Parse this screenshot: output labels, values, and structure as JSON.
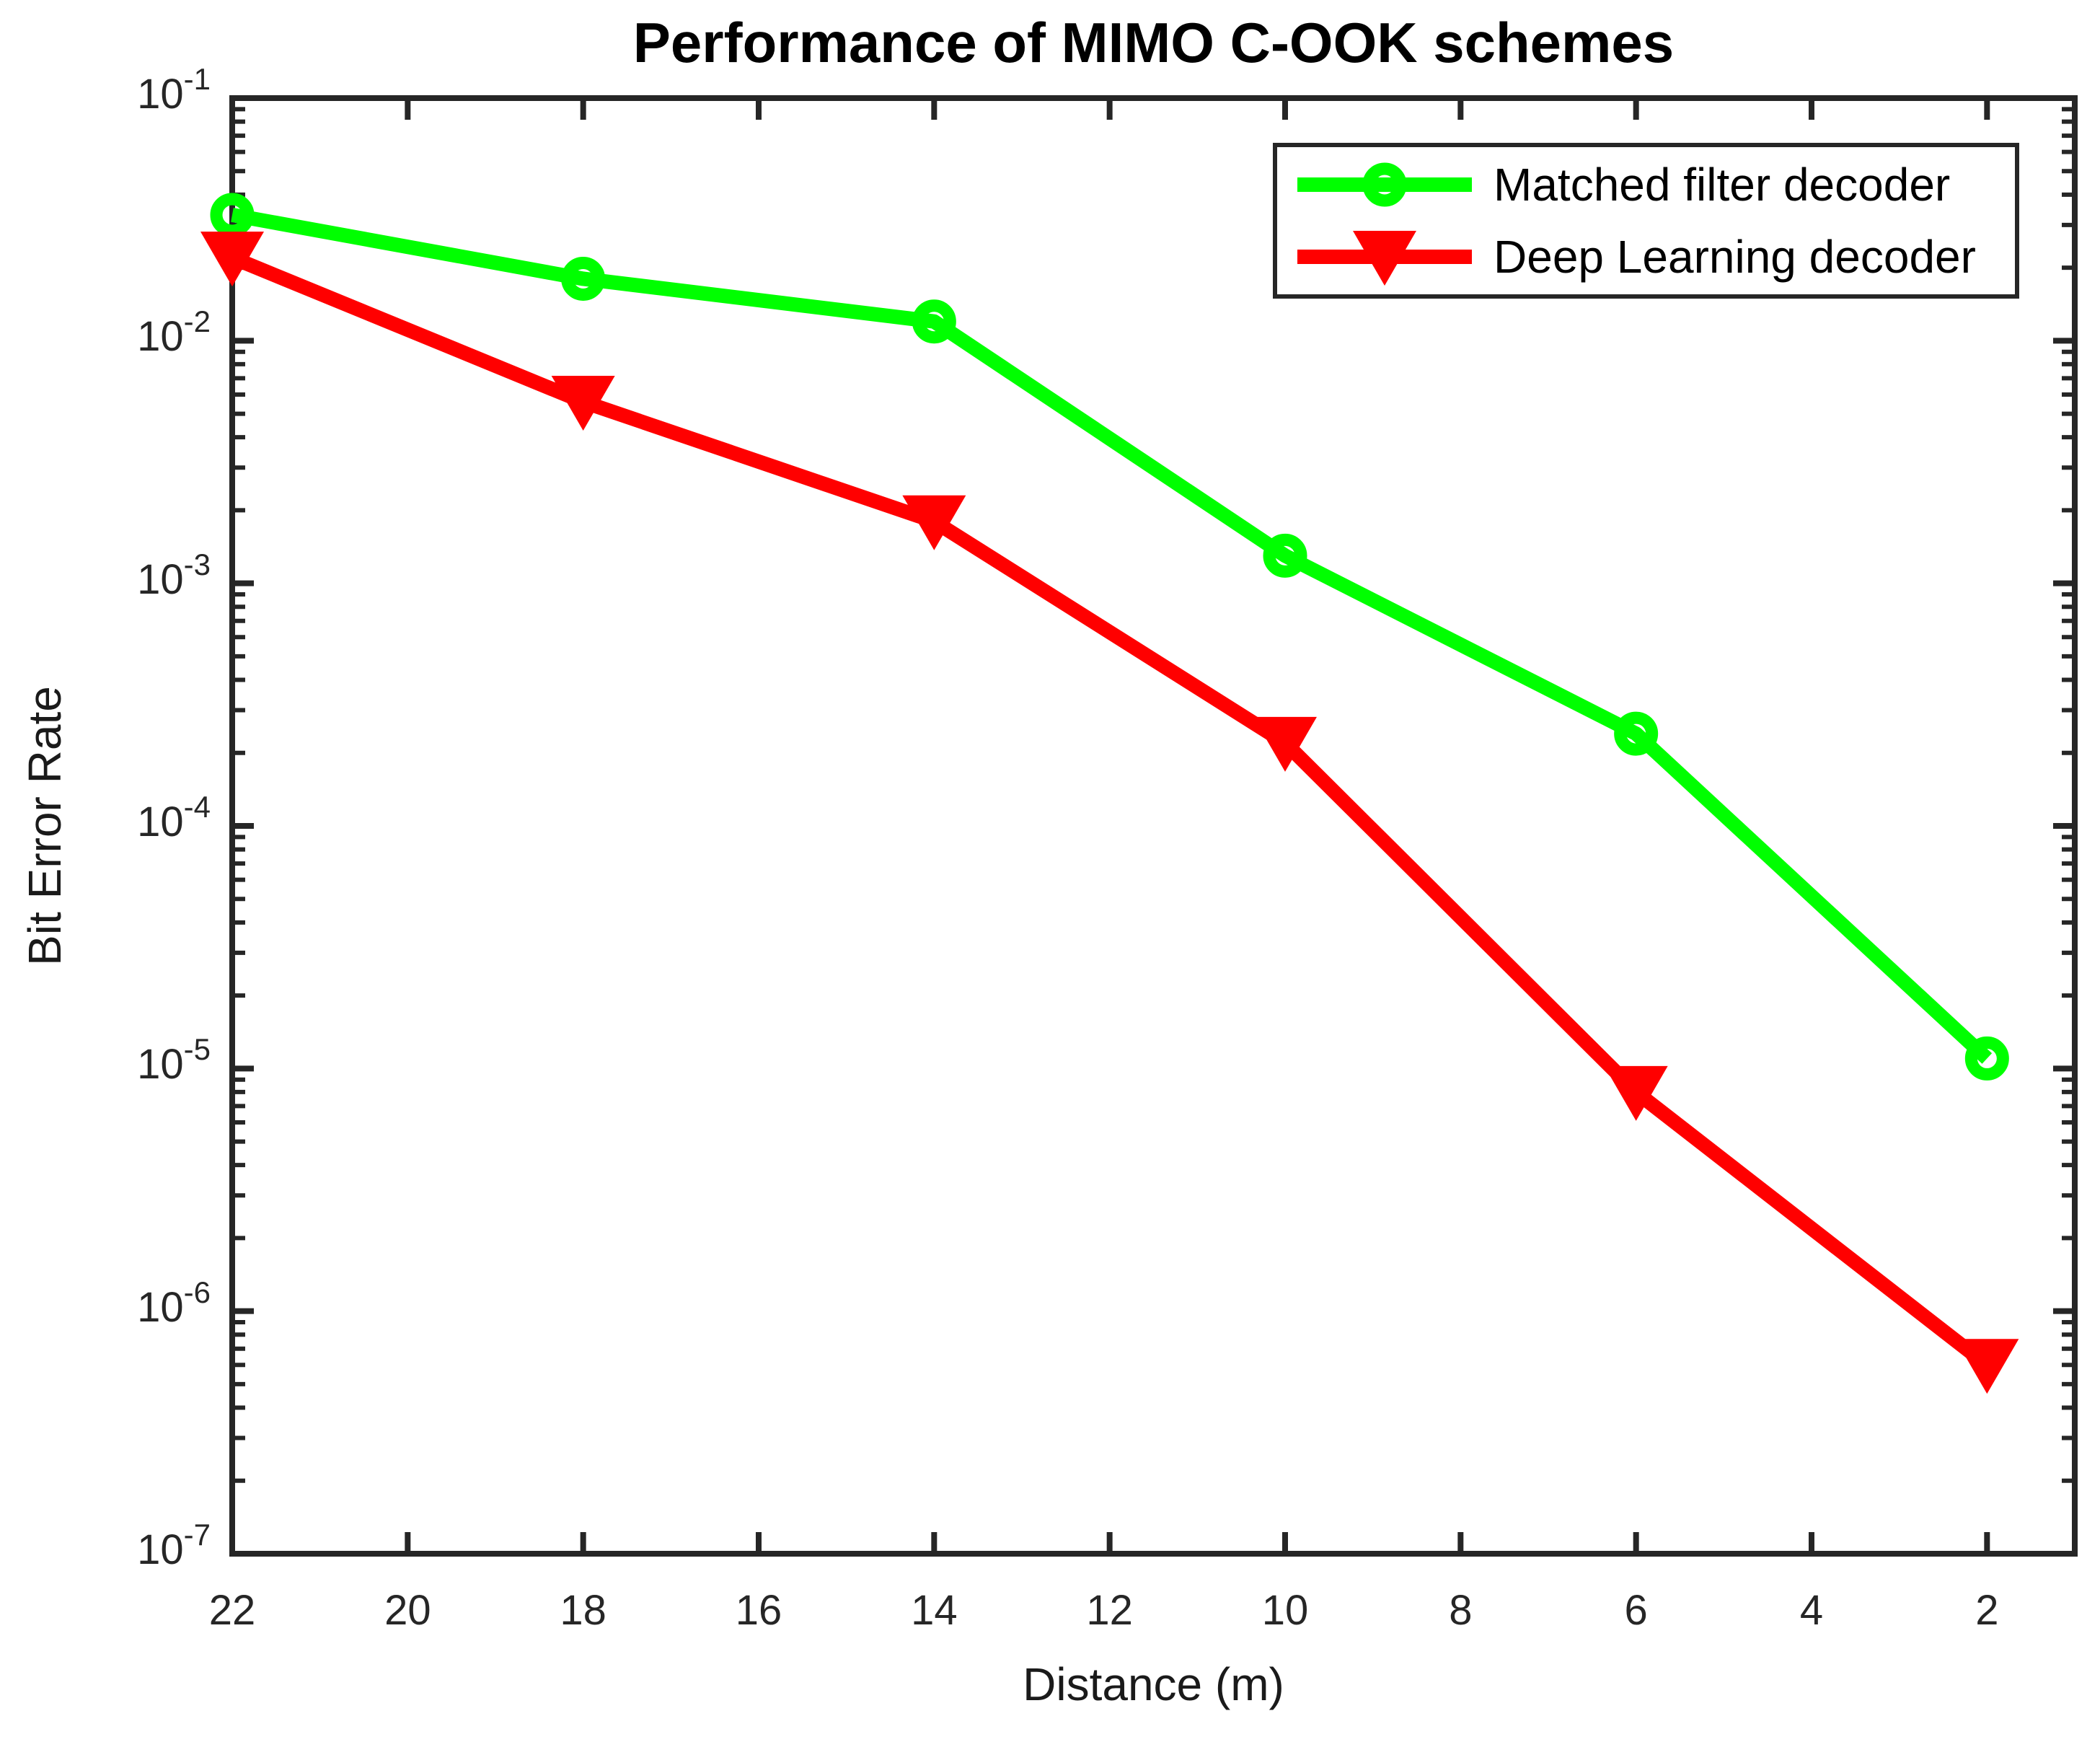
{
  "figure": {
    "background": "#ffffff"
  },
  "chart_data": {
    "type": "line",
    "title": "Performance of MIMO C-OOK schemes",
    "xlabel": "Distance (m)",
    "ylabel": "Bit Error Rate",
    "x": [
      22,
      18,
      14,
      10,
      6,
      2
    ],
    "series": [
      {
        "name": "Matched filter decoder",
        "color": "#00ff00",
        "marker": "circle",
        "values": [
          0.033,
          0.018,
          0.012,
          0.0013,
          0.00024,
          1.1e-05
        ]
      },
      {
        "name": "Deep Learning decoder",
        "color": "#ff0000",
        "marker": "triangle-down",
        "values": [
          0.022,
          0.0056,
          0.0018,
          0.00022,
          8e-06,
          6e-07
        ]
      }
    ],
    "x_axis": {
      "scale": "linear",
      "reversed": true,
      "range": [
        22,
        1
      ],
      "ticks": [
        22,
        20,
        18,
        16,
        14,
        12,
        10,
        8,
        6,
        4,
        2
      ],
      "tick_labels": [
        "22",
        "20",
        "18",
        "16",
        "14",
        "12",
        "10",
        "8",
        "6",
        "4",
        "2"
      ]
    },
    "y_axis": {
      "scale": "log",
      "range_exponents": [
        -1,
        -7
      ],
      "tick_exponents": [
        -1,
        -2,
        -3,
        -4,
        -5,
        -6,
        -7
      ],
      "tick_labels": [
        {
          "mantissa": "10",
          "exponent": "-1"
        },
        {
          "mantissa": "10",
          "exponent": "-2"
        },
        {
          "mantissa": "10",
          "exponent": "-3"
        },
        {
          "mantissa": "10",
          "exponent": "-4"
        },
        {
          "mantissa": "10",
          "exponent": "-5"
        },
        {
          "mantissa": "10",
          "exponent": "-6"
        },
        {
          "mantissa": "10",
          "exponent": "-7"
        }
      ]
    },
    "legend": {
      "position": "top-right"
    },
    "grid": false
  },
  "colors": {
    "axis": "#262626",
    "title": "#000000",
    "series_green": "#00ff00",
    "series_red": "#ff0000",
    "background": "#ffffff"
  }
}
